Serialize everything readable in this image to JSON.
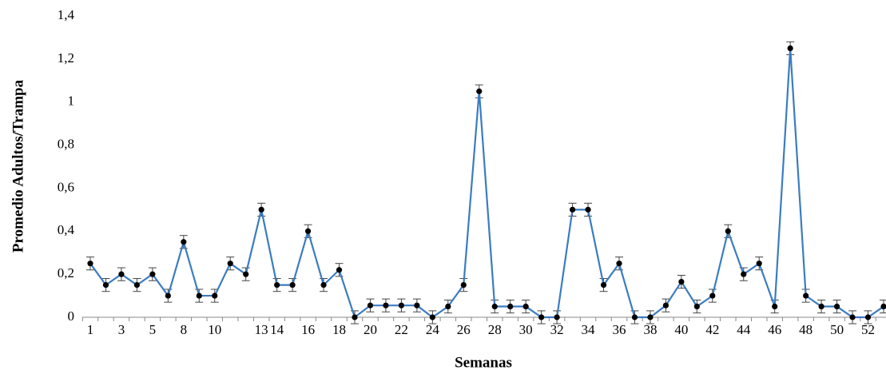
{
  "chart_data": {
    "type": "line",
    "x_label": "Semanas",
    "y_label": "Promedio Adultos/Trampa",
    "categories": [
      "1",
      null,
      "3",
      null,
      "5",
      null,
      "8",
      null,
      "10",
      null,
      null,
      "13",
      "14",
      null,
      "16",
      null,
      "18",
      null,
      "20",
      null,
      "22",
      null,
      "24",
      null,
      "26",
      null,
      "28",
      null,
      "30",
      null,
      "32",
      null,
      "34",
      null,
      "36",
      null,
      "38",
      null,
      "40",
      null,
      "42",
      null,
      "44",
      null,
      "46",
      null,
      "48",
      null,
      "50",
      null,
      "52",
      null
    ],
    "series": [
      {
        "name": "Promedio",
        "color": "#3a7cc2",
        "marker_color": "#000000",
        "values": [
          0.25,
          0.15,
          0.2,
          0.15,
          0.2,
          0.1,
          0.35,
          0.1,
          0.1,
          0.25,
          0.2,
          0.5,
          0.15,
          0.15,
          0.4,
          0.15,
          0.22,
          0,
          0.055,
          0.055,
          0.055,
          0.055,
          0,
          0.05,
          0.15,
          1.05,
          0.05,
          0.05,
          0.05,
          0,
          0,
          0.5,
          0.5,
          0.15,
          0.25,
          0,
          0,
          0.055,
          0.165,
          0.05,
          0.1,
          0.4,
          0.2,
          0.25,
          0.05,
          1.25,
          0.1,
          0.05,
          0.05,
          0,
          0,
          0.05
        ],
        "errors": [
          0.03,
          0.03,
          0.03,
          0.03,
          0.03,
          0.03,
          0.03,
          0.03,
          0.03,
          0.03,
          0.03,
          0.03,
          0.03,
          0.03,
          0.03,
          0.03,
          0.03,
          0.03,
          0.03,
          0.03,
          0.03,
          0.03,
          0.03,
          0.03,
          0.03,
          0.03,
          0.03,
          0.03,
          0.03,
          0.03,
          0.03,
          0.03,
          0.03,
          0.03,
          0.03,
          0.03,
          0.03,
          0.03,
          0.03,
          0.03,
          0.03,
          0.03,
          0.03,
          0.03,
          0.03,
          0.03,
          0.03,
          0.03,
          0.03,
          0.03,
          0.03,
          0.03
        ]
      }
    ],
    "ylim": [
      0,
      1.4
    ],
    "yticks": [
      0,
      {
        "value": 0.2,
        "label": "0,2"
      },
      {
        "value": 0.4,
        "label": "0,4"
      },
      {
        "value": 0.6,
        "label": "0,6"
      },
      {
        "value": 0.8,
        "label": "0,8"
      },
      1,
      {
        "value": 1.2,
        "label": "1,2"
      },
      {
        "value": 1.4,
        "label": "1,4"
      }
    ],
    "grid": false
  }
}
